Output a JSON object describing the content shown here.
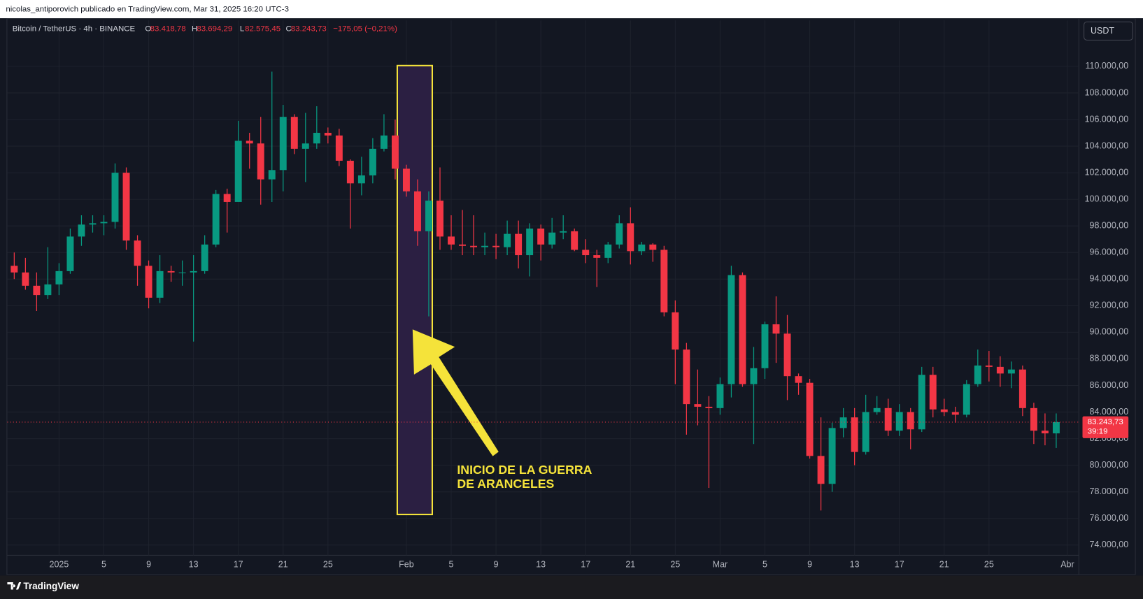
{
  "page": {
    "publisher": "nicolas_antiporovich publicado en TradingView.com, Mar 31, 2025 16:20 UTC-3",
    "currency": "USDT",
    "brand": "TradingView",
    "annotation": [
      "INICIO DE LA GUERRA",
      "DE ARANCELES"
    ]
  },
  "chart_data": {
    "type": "candlestick",
    "title": "Bitcoin / TetherUS · 4h · BINANCE",
    "ohlc_letters": [
      "O",
      "H",
      "L",
      "C"
    ],
    "ohlc": [
      {
        "value": 83418.78,
        "label": "83.418,78"
      },
      {
        "value": 83694.29,
        "label": "83.694,29"
      },
      {
        "value": 82575.45,
        "label": "82.575,45"
      },
      {
        "value": 83243.73,
        "label": "83.243,73"
      }
    ],
    "change": {
      "value": -175.05,
      "label": "−175,05 (−0,21%)"
    },
    "last_price": {
      "value": 83243.73,
      "label": "83.243,73"
    },
    "countdown": "39:19",
    "up_color": "#089981",
    "down_color": "#f23645",
    "grid": true,
    "xlim": [
      -4.62,
      91.02
    ],
    "xticks": [
      {
        "value": 0,
        "label": "2025"
      },
      {
        "value": 4,
        "label": "5"
      },
      {
        "value": 8,
        "label": "9"
      },
      {
        "value": 12,
        "label": "13"
      },
      {
        "value": 16,
        "label": "17"
      },
      {
        "value": 20,
        "label": "21"
      },
      {
        "value": 24,
        "label": "25"
      },
      {
        "value": 31,
        "label": "Feb"
      },
      {
        "value": 35,
        "label": "5"
      },
      {
        "value": 39,
        "label": "9"
      },
      {
        "value": 43,
        "label": "13"
      },
      {
        "value": 47,
        "label": "17"
      },
      {
        "value": 51,
        "label": "21"
      },
      {
        "value": 55,
        "label": "25"
      },
      {
        "value": 59,
        "label": "Mar"
      },
      {
        "value": 63,
        "label": "5"
      },
      {
        "value": 67,
        "label": "9"
      },
      {
        "value": 71,
        "label": "13"
      },
      {
        "value": 75,
        "label": "17"
      },
      {
        "value": 79,
        "label": "21"
      },
      {
        "value": 83,
        "label": "25"
      },
      {
        "value": 90,
        "label": "Abr"
      }
    ],
    "ylim": [
      73230,
      111810
    ],
    "yticks": [
      {
        "value": 74000,
        "label": "74.000,00"
      },
      {
        "value": 76000,
        "label": "76.000,00"
      },
      {
        "value": 78000,
        "label": "78.000,00"
      },
      {
        "value": 80000,
        "label": "80.000,00"
      },
      {
        "value": 82000,
        "label": "82.000,00"
      },
      {
        "value": 84000,
        "label": "84.000,00"
      },
      {
        "value": 86000,
        "label": "86.000,00"
      },
      {
        "value": 88000,
        "label": "88.000,00"
      },
      {
        "value": 90000,
        "label": "90.000,00"
      },
      {
        "value": 92000,
        "label": "92.000,00"
      },
      {
        "value": 94000,
        "label": "94.000,00"
      },
      {
        "value": 96000,
        "label": "96.000,00"
      },
      {
        "value": 98000,
        "label": "98.000,00"
      },
      {
        "value": 100000,
        "label": "100.000,00"
      },
      {
        "value": 102000,
        "label": "102.000,00"
      },
      {
        "value": 104000,
        "label": "104.000,00"
      },
      {
        "value": 106000,
        "label": "106.000,00"
      },
      {
        "value": 108000,
        "label": "108.000,00"
      },
      {
        "value": 110000,
        "label": "110.000,00"
      }
    ],
    "candles": {
      "x": [
        -4,
        -3,
        -2,
        -1,
        0,
        1,
        2,
        3,
        4,
        5,
        6,
        7,
        8,
        9,
        10,
        11,
        12,
        13,
        14,
        15,
        16,
        17,
        18,
        19,
        20,
        21,
        22,
        23,
        24,
        25,
        26,
        27,
        28,
        29,
        30,
        31,
        32,
        33,
        34,
        35,
        36,
        37,
        38,
        39,
        40,
        41,
        42,
        43,
        44,
        45,
        46,
        47,
        48,
        49,
        50,
        51,
        52,
        53,
        54,
        55,
        56,
        57,
        58,
        59,
        60,
        61,
        62,
        63,
        64,
        65,
        66,
        67,
        68,
        69,
        70,
        71,
        72,
        73,
        74,
        75,
        76,
        77,
        78,
        79,
        80,
        81,
        82,
        83,
        84,
        85,
        86,
        87,
        88,
        89
      ],
      "open": [
        95000,
        94500,
        93500,
        92800,
        93600,
        94600,
        97200,
        98100,
        98200,
        98300,
        102000,
        96900,
        95000,
        92600,
        94600,
        94500,
        94500,
        94600,
        96600,
        100400,
        99800,
        104400,
        104200,
        101500,
        102200,
        106200,
        103800,
        104200,
        105000,
        104800,
        102900,
        101200,
        101800,
        103800,
        104800,
        102300,
        100600,
        97600,
        99900,
        97200,
        96600,
        96500,
        96400,
        96500,
        96400,
        97400,
        95800,
        97800,
        96600,
        97500,
        97600,
        96200,
        95800,
        95600,
        96600,
        98200,
        96100,
        96600,
        96200,
        91500,
        88700,
        84600,
        84400,
        84300,
        86100,
        94300,
        86100,
        87300,
        90600,
        89900,
        86700,
        86200,
        80700,
        78600,
        82800,
        83600,
        81000,
        84000,
        84300,
        82600,
        84000,
        82700,
        86800,
        84200,
        84000,
        83800,
        86100,
        87500,
        87400,
        86900,
        87200,
        84300,
        82600,
        82400
      ],
      "high": [
        96000,
        95600,
        94500,
        96400,
        95200,
        97800,
        98800,
        98800,
        98800,
        102700,
        102400,
        97300,
        95400,
        95800,
        95000,
        95400,
        95800,
        97300,
        100700,
        100800,
        105900,
        105000,
        106200,
        109600,
        107100,
        106400,
        106500,
        107000,
        105400,
        105300,
        103000,
        103200,
        104600,
        106400,
        106000,
        102600,
        101500,
        100600,
        102400,
        98800,
        99200,
        98800,
        97500,
        97400,
        98400,
        98400,
        98200,
        98100,
        98600,
        98800,
        97800,
        97000,
        96200,
        96800,
        98800,
        99400,
        96800,
        96700,
        96500,
        92400,
        89200,
        87200,
        85200,
        86600,
        95000,
        94500,
        88900,
        90800,
        92700,
        91300,
        86900,
        86500,
        83600,
        83200,
        84300,
        84300,
        85300,
        85200,
        85000,
        84600,
        84300,
        87400,
        87400,
        85000,
        84400,
        86400,
        88700,
        88600,
        88200,
        87800,
        87500,
        84700,
        83900,
        83900
      ],
      "low": [
        94000,
        93200,
        91600,
        92500,
        92800,
        94400,
        96500,
        97500,
        97300,
        97800,
        96200,
        93500,
        91800,
        92200,
        93800,
        93500,
        89300,
        94400,
        96400,
        97500,
        99800,
        102300,
        99600,
        99800,
        100600,
        103400,
        101300,
        103800,
        104200,
        102500,
        97800,
        100300,
        101200,
        103600,
        101500,
        100200,
        96500,
        91200,
        96200,
        96200,
        95800,
        95800,
        95800,
        95500,
        95800,
        94800,
        94200,
        95400,
        96300,
        97000,
        96100,
        95200,
        93400,
        95200,
        96300,
        95100,
        95800,
        95300,
        91200,
        86100,
        82300,
        83000,
        78300,
        83800,
        85100,
        85900,
        81600,
        86500,
        87700,
        84900,
        85300,
        80500,
        76600,
        78000,
        82100,
        80000,
        80800,
        83800,
        82200,
        82200,
        81200,
        82500,
        83600,
        83700,
        83200,
        83600,
        85900,
        86300,
        85900,
        85800,
        83700,
        81600,
        81500,
        81300
      ],
      "close": [
        94500,
        93500,
        92800,
        93600,
        94600,
        97200,
        98100,
        98200,
        98300,
        102000,
        96900,
        95000,
        92600,
        94600,
        94500,
        94500,
        94600,
        96600,
        100400,
        99800,
        104400,
        104200,
        101500,
        102200,
        106200,
        103800,
        104200,
        105000,
        104800,
        102900,
        101200,
        101800,
        103800,
        104800,
        102300,
        100600,
        97600,
        99900,
        97200,
        96600,
        96500,
        96400,
        96500,
        96400,
        97400,
        95800,
        97800,
        96600,
        97500,
        97600,
        96200,
        95800,
        95600,
        96600,
        98200,
        96100,
        96600,
        96200,
        91500,
        88700,
        84600,
        84400,
        84300,
        86100,
        94300,
        86100,
        87300,
        90600,
        89900,
        86700,
        86200,
        80700,
        78600,
        82800,
        83600,
        81000,
        84000,
        84300,
        82600,
        84000,
        82700,
        86800,
        84200,
        84000,
        83800,
        86100,
        87500,
        87400,
        86900,
        87200,
        84300,
        82600,
        82400,
        83243.73
      ]
    }
  }
}
